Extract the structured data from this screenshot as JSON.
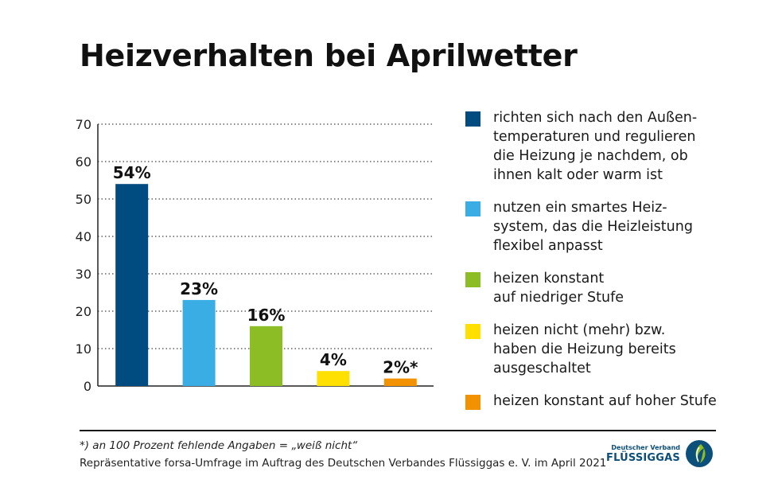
{
  "title": "Heizverhalten bei Aprilwetter",
  "chart_data": {
    "type": "bar",
    "categories": [
      "richten sich nach den Außen-\ntemperaturen und regulieren\ndie Heizung je nachdem, ob\nihnen kalt oder warm ist",
      "nutzen ein smartes Heiz-\nsystem, das die Heizleistung\nflexibel anpasst",
      "heizen konstant\nauf niedriger Stufe",
      "heizen nicht (mehr) bzw.\nhaben die Heizung bereits\nausgeschaltet",
      "heizen konstant auf hoher Stufe"
    ],
    "values": [
      54,
      23,
      16,
      4,
      2
    ],
    "value_labels": [
      "54%",
      "23%",
      "16%",
      "4%",
      "2%*"
    ],
    "colors": [
      "#004b7f",
      "#3aaee4",
      "#8cbd24",
      "#ffe000",
      "#f39200"
    ],
    "y_ticks": [
      "0",
      "10",
      "20",
      "30",
      "40",
      "50",
      "60",
      "70"
    ],
    "ylim": [
      0,
      70
    ],
    "grid": true,
    "legend_position": "right"
  },
  "footnote": "*) an 100 Prozent fehlende Angaben = „weiß nicht“",
  "source": "Repräsentative forsa-Umfrage im Auftrag des Deutschen Verbandes Flüssiggas e. V. im April 2021",
  "logo": {
    "top_text": "Deutscher Verband",
    "main_text": "FLÜSSIGGAS",
    "color": "#0b4f7a",
    "accent": "#8cbd24"
  }
}
